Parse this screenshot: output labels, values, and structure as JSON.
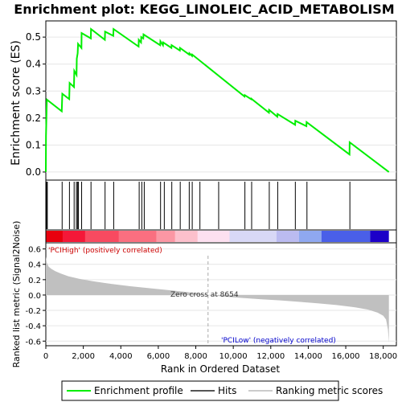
{
  "chart_data": {
    "type": "line",
    "title": "Enrichment plot: KEGG_LINOLEIC_ACID_METABOLISM",
    "es_panel": {
      "ylabel": "Enrichment score (ES)",
      "yticks": [
        "0.0",
        "0.1",
        "0.2",
        "0.3",
        "0.4",
        "0.5"
      ],
      "ylim": [
        -0.03,
        0.56
      ],
      "series": [
        {
          "name": "Enrichment profile",
          "color": "#00ee00",
          "x": [
            0,
            10,
            50,
            60,
            850,
            880,
            1250,
            1270,
            1500,
            1520,
            1640,
            1650,
            1700,
            1720,
            1900,
            1910,
            2400,
            2410,
            3150,
            3160,
            3600,
            3610,
            4950,
            4960,
            5080,
            5090,
            5200,
            5210,
            6100,
            6110,
            6250,
            6260,
            6700,
            6710,
            7150,
            7160,
            7650,
            7660,
            7800,
            7810,
            10600,
            10610,
            10950,
            10960,
            11900,
            11910,
            12350,
            12360,
            13300,
            13310,
            13900,
            13910,
            16200,
            16210,
            18300
          ],
          "y": [
            0.0,
            0.135,
            0.26,
            0.268,
            0.225,
            0.29,
            0.27,
            0.33,
            0.315,
            0.375,
            0.36,
            0.42,
            0.44,
            0.475,
            0.46,
            0.515,
            0.495,
            0.53,
            0.49,
            0.52,
            0.505,
            0.53,
            0.465,
            0.49,
            0.48,
            0.5,
            0.495,
            0.51,
            0.47,
            0.485,
            0.47,
            0.48,
            0.46,
            0.47,
            0.45,
            0.46,
            0.435,
            0.44,
            0.43,
            0.435,
            0.28,
            0.285,
            0.27,
            0.272,
            0.22,
            0.23,
            0.205,
            0.215,
            0.175,
            0.19,
            0.17,
            0.185,
            0.065,
            0.11,
            0.0
          ]
        }
      ]
    },
    "hits": [
      40,
      80,
      870,
      1260,
      1510,
      1630,
      1690,
      1740,
      1910,
      2410,
      3160,
      3620,
      4980,
      5120,
      5250,
      6120,
      6320,
      6720,
      7170,
      7650,
      7810,
      8220,
      9220,
      10620,
      10980,
      11920,
      12370,
      13310,
      13930,
      16220
    ],
    "metric_panel": {
      "ylabel": "Ranked list metric (Signal2Noise)",
      "yticks": [
        "0.6",
        "0.4",
        "0.2",
        "0.0",
        "-0.2",
        "-0.4",
        "-0.6"
      ],
      "ylim": [
        -0.66,
        0.68
      ],
      "x": [
        0,
        50,
        150,
        300,
        500,
        800,
        1200,
        1800,
        2500,
        3500,
        4500,
        5500,
        6500,
        7500,
        8654,
        9500,
        10500,
        11500,
        12500,
        13500,
        14500,
        15500,
        16500,
        17200,
        17700,
        18000,
        18150,
        18250,
        18300
      ],
      "y": [
        0.5,
        0.42,
        0.37,
        0.34,
        0.31,
        0.28,
        0.245,
        0.21,
        0.18,
        0.145,
        0.115,
        0.09,
        0.065,
        0.04,
        0.0,
        -0.02,
        -0.038,
        -0.055,
        -0.07,
        -0.088,
        -0.108,
        -0.13,
        -0.16,
        -0.19,
        -0.23,
        -0.27,
        -0.32,
        -0.45,
        -0.62
      ],
      "zero_cross_label": "Zero cross at 8654",
      "zero_cross": 8654,
      "pos_label": "'PCIHigh' (positively correlated)",
      "neg_label": "'PCILow' (negatively correlated)",
      "pos_color": "#cc0000",
      "neg_color": "#0000cc"
    },
    "xaxis": {
      "label": "Rank in Ordered Dataset",
      "xlim": [
        0,
        18700
      ],
      "ticks": [
        0,
        2000,
        4000,
        6000,
        8000,
        10000,
        12000,
        14000,
        16000,
        18000
      ],
      "tick_labels": [
        "0",
        "2,000",
        "4,000",
        "6,000",
        "8,000",
        "10,000",
        "12,000",
        "14,000",
        "16,000",
        "18,000"
      ]
    },
    "heatbar": {
      "segments": [
        {
          "x0": 0,
          "x1": 900,
          "color": "#e8000e"
        },
        {
          "x0": 900,
          "x1": 2100,
          "color": "#f41838"
        },
        {
          "x0": 2100,
          "x1": 3900,
          "color": "#f84a60"
        },
        {
          "x0": 3900,
          "x1": 5900,
          "color": "#fa6f80"
        },
        {
          "x0": 5900,
          "x1": 6900,
          "color": "#fb97a4"
        },
        {
          "x0": 6900,
          "x1": 8100,
          "color": "#fcc0cc"
        },
        {
          "x0": 8100,
          "x1": 9800,
          "color": "#fde0f0"
        },
        {
          "x0": 9800,
          "x1": 12300,
          "color": "#d8d8f6"
        },
        {
          "x0": 12300,
          "x1": 13500,
          "color": "#bbbbf0"
        },
        {
          "x0": 13500,
          "x1": 14700,
          "color": "#8fa8f0"
        },
        {
          "x0": 14700,
          "x1": 17300,
          "color": "#4a5fe8"
        },
        {
          "x0": 17300,
          "x1": 18300,
          "color": "#1c00c8"
        }
      ]
    },
    "legend": [
      {
        "label": "Enrichment profile",
        "color": "#00ee00",
        "kind": "line-green"
      },
      {
        "label": "Hits",
        "color": "#555555",
        "kind": "line-dark"
      },
      {
        "label": "Ranking metric scores",
        "color": "#cccccc",
        "kind": "line-light"
      }
    ]
  }
}
